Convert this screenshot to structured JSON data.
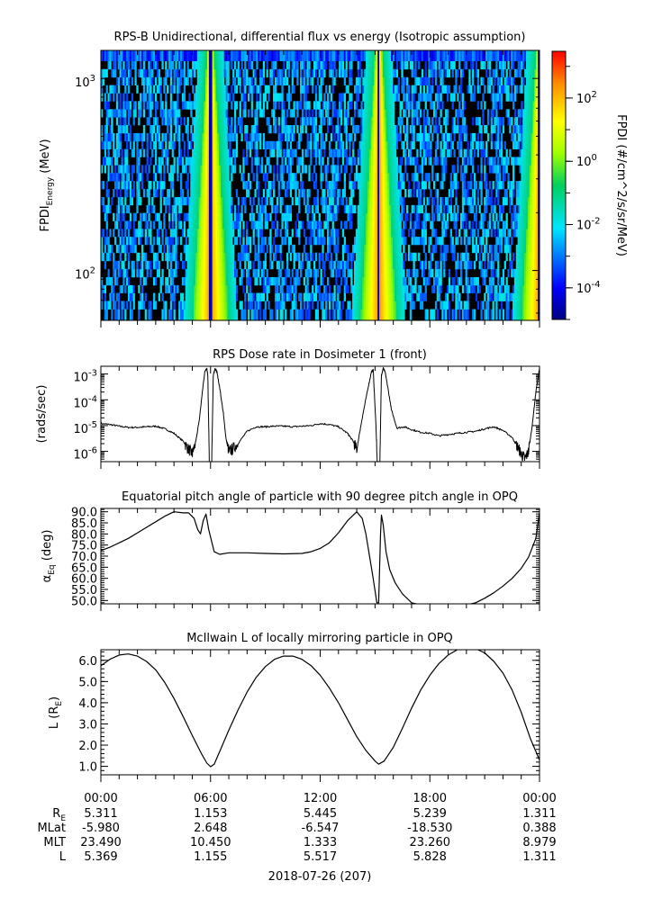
{
  "page": {
    "date_label": "2018-07-26 (207)"
  },
  "x_axis": {
    "ticks": [
      "00:00",
      "06:00",
      "12:00",
      "18:00",
      "00:00"
    ]
  },
  "ephemeris": {
    "rows": [
      {
        "label": "R",
        "sub": "E",
        "values": [
          "5.311",
          "1.153",
          "5.445",
          "5.239",
          "1.311"
        ]
      },
      {
        "label": "MLat",
        "sub": "",
        "values": [
          "-5.980",
          "2.648",
          "-6.547",
          "-18.530",
          "0.388"
        ]
      },
      {
        "label": "MLT",
        "sub": "",
        "values": [
          "23.490",
          "10.450",
          "1.333",
          "23.260",
          "8.979"
        ]
      },
      {
        "label": "L",
        "sub": "",
        "values": [
          "5.369",
          "1.155",
          "5.517",
          "5.828",
          "1.311"
        ]
      }
    ]
  },
  "chart_data": [
    {
      "type": "heatmap",
      "title": "RPS-B  Unidirectional, differential flux vs energy (Isotropic assumption)",
      "ylabel": {
        "main": "FPDI",
        "sub": "Energy",
        "tail": " (MeV)"
      },
      "y_scale": "log",
      "ylim": [
        55,
        1400
      ],
      "y_ticks": [
        {
          "value": 100,
          "base": "10",
          "exp": "2"
        },
        {
          "value": 1000,
          "base": "10",
          "exp": "3"
        }
      ],
      "x_hours": [
        0,
        24
      ],
      "energy_bins": [
        60,
        66,
        73,
        80,
        88,
        97,
        107,
        118,
        130,
        143,
        157,
        173,
        190,
        209,
        230,
        253,
        279,
        307,
        338,
        372,
        409,
        450,
        495,
        545,
        600,
        660,
        726,
        800,
        880,
        968,
        1065,
        1175,
        1300
      ],
      "belt_crossings_hours": [
        6.0,
        15.2,
        24.0
      ],
      "colorbar": {
        "label": "FPDI (#/cm^2/s/sr/MeV)",
        "scale": "log",
        "range": [
          1e-05,
          3000
        ],
        "ticks": [
          {
            "value": 0.0001,
            "base": "10",
            "exp": "-4"
          },
          {
            "value": 0.01,
            "base": "10",
            "exp": "-2"
          },
          {
            "value": 1,
            "base": "10",
            "exp": "0"
          },
          {
            "value": 100,
            "base": "10",
            "exp": "2"
          }
        ]
      }
    },
    {
      "type": "line",
      "title": "RPS  Dose rate in Dosimeter 1 (front)",
      "ylabel": "(rads/sec)",
      "y_scale": "log",
      "ylim": [
        4e-07,
        0.002
      ],
      "y_ticks": [
        {
          "value": 1e-06,
          "base": "10",
          "exp": "-6"
        },
        {
          "value": 1e-05,
          "base": "10",
          "exp": "-5"
        },
        {
          "value": 0.0001,
          "base": "10",
          "exp": "-4"
        },
        {
          "value": 0.001,
          "base": "10",
          "exp": "-3"
        }
      ],
      "series": [
        {
          "x": [
            0,
            0.5,
            1,
            1.5,
            2,
            2.5,
            3,
            3.5,
            4,
            4.5,
            4.8,
            5.0,
            5.2,
            5.4,
            5.55,
            5.7,
            5.8,
            5.85,
            5.95,
            6.05,
            6.15,
            6.25,
            6.35,
            6.5,
            6.7,
            6.85,
            7.0,
            7.2,
            7.5,
            8,
            8.5,
            9,
            9.5,
            10,
            10.5,
            11,
            11.5,
            12,
            12.5,
            13,
            13.5,
            13.8,
            14.0,
            14.3,
            14.6,
            14.8,
            14.9,
            15.05,
            15.15,
            15.25,
            15.35,
            15.45,
            15.55,
            15.7,
            15.9,
            16.2,
            16.6,
            17,
            17.5,
            18,
            18.5,
            19,
            19.5,
            20,
            20.5,
            21,
            21.5,
            22,
            22.5,
            22.8,
            23.0,
            23.2,
            23.4,
            23.6,
            23.8,
            24
          ],
          "y": [
            1.2e-05,
            1.1e-05,
            9.5e-06,
            8.5e-06,
            8.5e-06,
            9e-06,
            9.5e-06,
            7.5e-06,
            5e-06,
            2.5e-06,
            1.2e-06,
            8e-07,
            2.5e-06,
            2e-05,
            0.0002,
            0.0014,
            0.0016,
            0.0009,
            1e-07,
            1e-07,
            0.0009,
            0.0016,
            0.0012,
            0.0003,
            3e-05,
            3e-06,
            1e-06,
            1.2e-06,
            2e-06,
            6e-06,
            9e-06,
            9e-06,
            9.5e-06,
            9.5e-06,
            9e-06,
            9.5e-06,
            1e-05,
            1.2e-05,
            1.1e-05,
            9e-06,
            5e-06,
            2.5e-06,
            1.2e-06,
            2e-05,
            0.00025,
            0.0012,
            0.0015,
            1e-05,
            1e-07,
            1e-07,
            0.0009,
            0.0017,
            0.0012,
            0.0003,
            4e-05,
            8e-06,
            9e-06,
            7e-06,
            5.5e-06,
            5e-06,
            4e-06,
            4.5e-06,
            5e-06,
            5.5e-06,
            6e-06,
            7.5e-06,
            9e-06,
            6.5e-06,
            3.5e-06,
            1.5e-06,
            8e-07,
            5e-07,
            1e-06,
            1e-05,
            0.0002,
            0.0017
          ]
        }
      ]
    },
    {
      "type": "line",
      "title": "Equatorial pitch angle of particle with 90 degree pitch angle in OPQ",
      "ylabel": {
        "main": "α",
        "sub": "Eq",
        "tail": " (deg)"
      },
      "ylim": [
        48.5,
        91.5
      ],
      "y_ticks": [
        50,
        55,
        60,
        65,
        70,
        75,
        80,
        85,
        90
      ],
      "series": [
        {
          "x": [
            0,
            0.5,
            1,
            1.5,
            2,
            2.5,
            3,
            3.5,
            4,
            4.5,
            4.8,
            5.1,
            5.3,
            5.45,
            5.6,
            5.75,
            5.9,
            6.2,
            6.5,
            7,
            8,
            9,
            10,
            11,
            11.5,
            12,
            12.5,
            13,
            13.5,
            14,
            14.3,
            14.5,
            14.7,
            14.9,
            15.1,
            15.2,
            15.3,
            15.35,
            15.45,
            15.6,
            15.8,
            16.1,
            16.5,
            17,
            17.5,
            18,
            18.5,
            19,
            19.5,
            20,
            20.5,
            21,
            21.5,
            22,
            22.5,
            23,
            23.4,
            23.8,
            24
          ],
          "y": [
            72.5,
            74,
            76,
            78,
            80.5,
            83,
            85.5,
            88,
            90,
            89.5,
            89.5,
            87,
            82,
            80,
            86,
            89,
            82,
            72,
            70.8,
            71.5,
            71.5,
            71.2,
            71,
            71.2,
            72,
            73.5,
            76,
            80.5,
            86,
            90,
            87,
            80,
            70,
            60,
            49,
            49,
            80,
            88.5,
            84,
            72,
            64,
            58,
            53,
            49,
            48,
            48,
            48,
            48,
            48,
            48,
            49,
            51,
            53.5,
            56.5,
            60,
            64.5,
            69.5,
            78,
            89.5
          ]
        }
      ]
    },
    {
      "type": "line",
      "title": "McIlwain L of locally mirroring particle in OPQ",
      "ylabel": {
        "main": "L (R",
        "sub": "E",
        "tail": ")"
      },
      "ylim": [
        0.6,
        6.5
      ],
      "y_ticks": [
        1,
        2,
        3,
        4,
        5,
        6
      ],
      "series": [
        {
          "x": [
            0,
            0.5,
            1,
            1.5,
            2,
            2.5,
            3,
            3.5,
            4,
            4.5,
            5,
            5.5,
            5.8,
            6,
            6.2,
            6.5,
            7,
            7.5,
            8,
            8.5,
            9,
            9.5,
            10,
            10.5,
            11,
            11.5,
            12,
            12.5,
            13,
            13.5,
            14,
            14.5,
            15,
            15.2,
            15.5,
            16,
            16.5,
            17,
            17.5,
            18,
            18.5,
            19,
            19.5,
            20,
            20.5,
            21,
            21.5,
            22,
            22.5,
            23,
            23.5,
            24
          ],
          "y": [
            5.75,
            6.05,
            6.25,
            6.3,
            6.2,
            5.95,
            5.55,
            4.95,
            4.2,
            3.35,
            2.45,
            1.6,
            1.15,
            0.98,
            1.1,
            1.7,
            2.7,
            3.65,
            4.5,
            5.2,
            5.7,
            6.05,
            6.2,
            6.2,
            6.05,
            5.75,
            5.3,
            4.7,
            4,
            3.2,
            2.4,
            1.75,
            1.25,
            1.1,
            1.25,
            1.9,
            2.8,
            3.75,
            4.6,
            5.3,
            5.85,
            6.25,
            6.5,
            6.6,
            6.55,
            6.35,
            5.95,
            5.4,
            4.6,
            3.55,
            2.3,
            1.3
          ]
        }
      ]
    }
  ]
}
